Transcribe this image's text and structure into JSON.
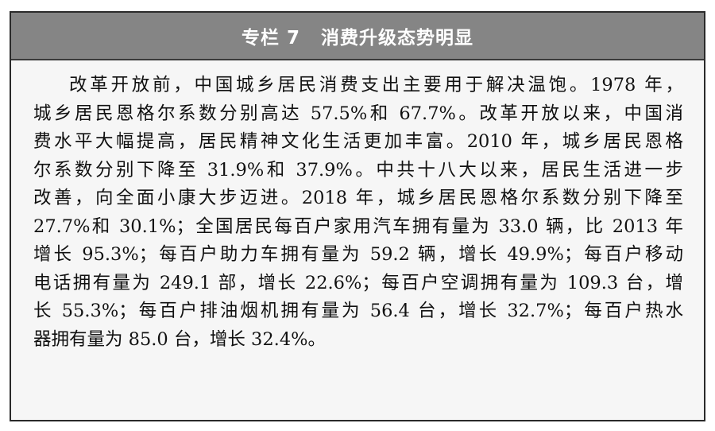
{
  "header": {
    "label": "专栏 7",
    "title": "消费升级态势明显"
  },
  "paragraph_lines": [
    "改革开放前，中国城乡居民消费支出主要用于解决温饱。1978 年，",
    "城乡居民恩格尔系数分别高达 57.5%和 67.7%。改革开放以来，中国消",
    "费水平大幅提高，居民精神文化生活更加丰富。2010 年，城乡居民恩格",
    "尔系数分别下降至 31.9%和 37.9%。中共十八大以来，居民生活进一步",
    "改善，向全面小康大步迈进。2018 年，城乡居民恩格尔系数分别下降至",
    "27.7%和 30.1%；全国居民每百户家用汽车拥有量为 33.0 辆，比 2013 年",
    "增长 95.3%；每百户助力车拥有量为 59.2 辆，增长 49.9%；每百户移动",
    "电话拥有量为 249.1 部，增长 22.6%；每百户空调拥有量为 109.3 台，增",
    "长 55.3%；每百户排油烟机拥有量为 56.4 台，增长 32.7%；每百户热水",
    "器拥有量为 85.0 台，增长 32.4%。"
  ],
  "colors": {
    "header_bg": "#858585",
    "body_bg": "#f6f6f6",
    "border": "#2a2a2a"
  }
}
